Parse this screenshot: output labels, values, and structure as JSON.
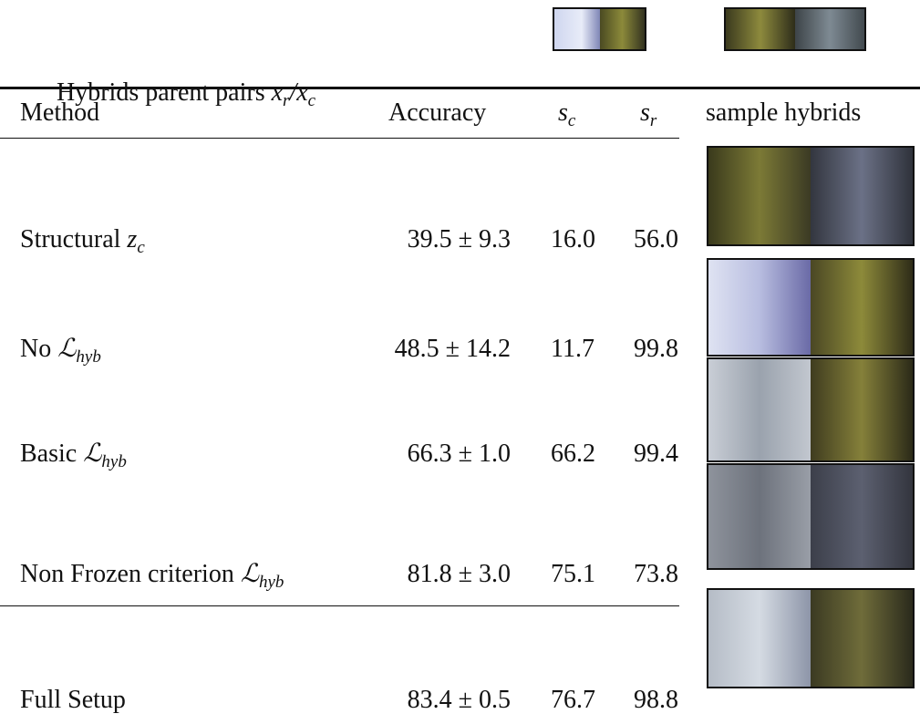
{
  "caption": {
    "text": "Hybrids parent pairs",
    "math": [
      {
        "t": "x",
        "sub": "r"
      },
      {
        "t": "/x",
        "sub": "c"
      }
    ]
  },
  "table": {
    "header": [
      "Method",
      "Accuracy",
      {
        "t": "s",
        "sub": "c"
      },
      {
        "t": "s",
        "sub": "r"
      },
      "sample hybrids"
    ],
    "rows": [
      {
        "method": "Structural",
        "math": {
          "t": "z",
          "sub": "c"
        },
        "accuracy": "39.5 ± 9.3",
        "sc": "16.0",
        "sr": "56.0"
      },
      {
        "method": "No",
        "math": {
          "t": "ℒ",
          "sub": "hyb"
        },
        "accuracy": "48.5 ± 14.2",
        "sc": "11.7",
        "sr": "99.8"
      },
      {
        "method": "Basic",
        "math": {
          "t": "ℒ",
          "sub": "hyb"
        },
        "accuracy": "66.3 ± 1.0",
        "sc": "66.2",
        "sr": "99.4"
      },
      {
        "method": "Non Frozen criterion",
        "math": {
          "t": "ℒ",
          "sub": "hyb"
        },
        "accuracy": "81.8 ± 3.0",
        "sc": "75.1",
        "sr": "73.8"
      },
      {
        "method": "Full Setup",
        "accuracy": "83.4 ± 0.5",
        "sc": "76.7",
        "sr": "98.8"
      }
    ]
  }
}
